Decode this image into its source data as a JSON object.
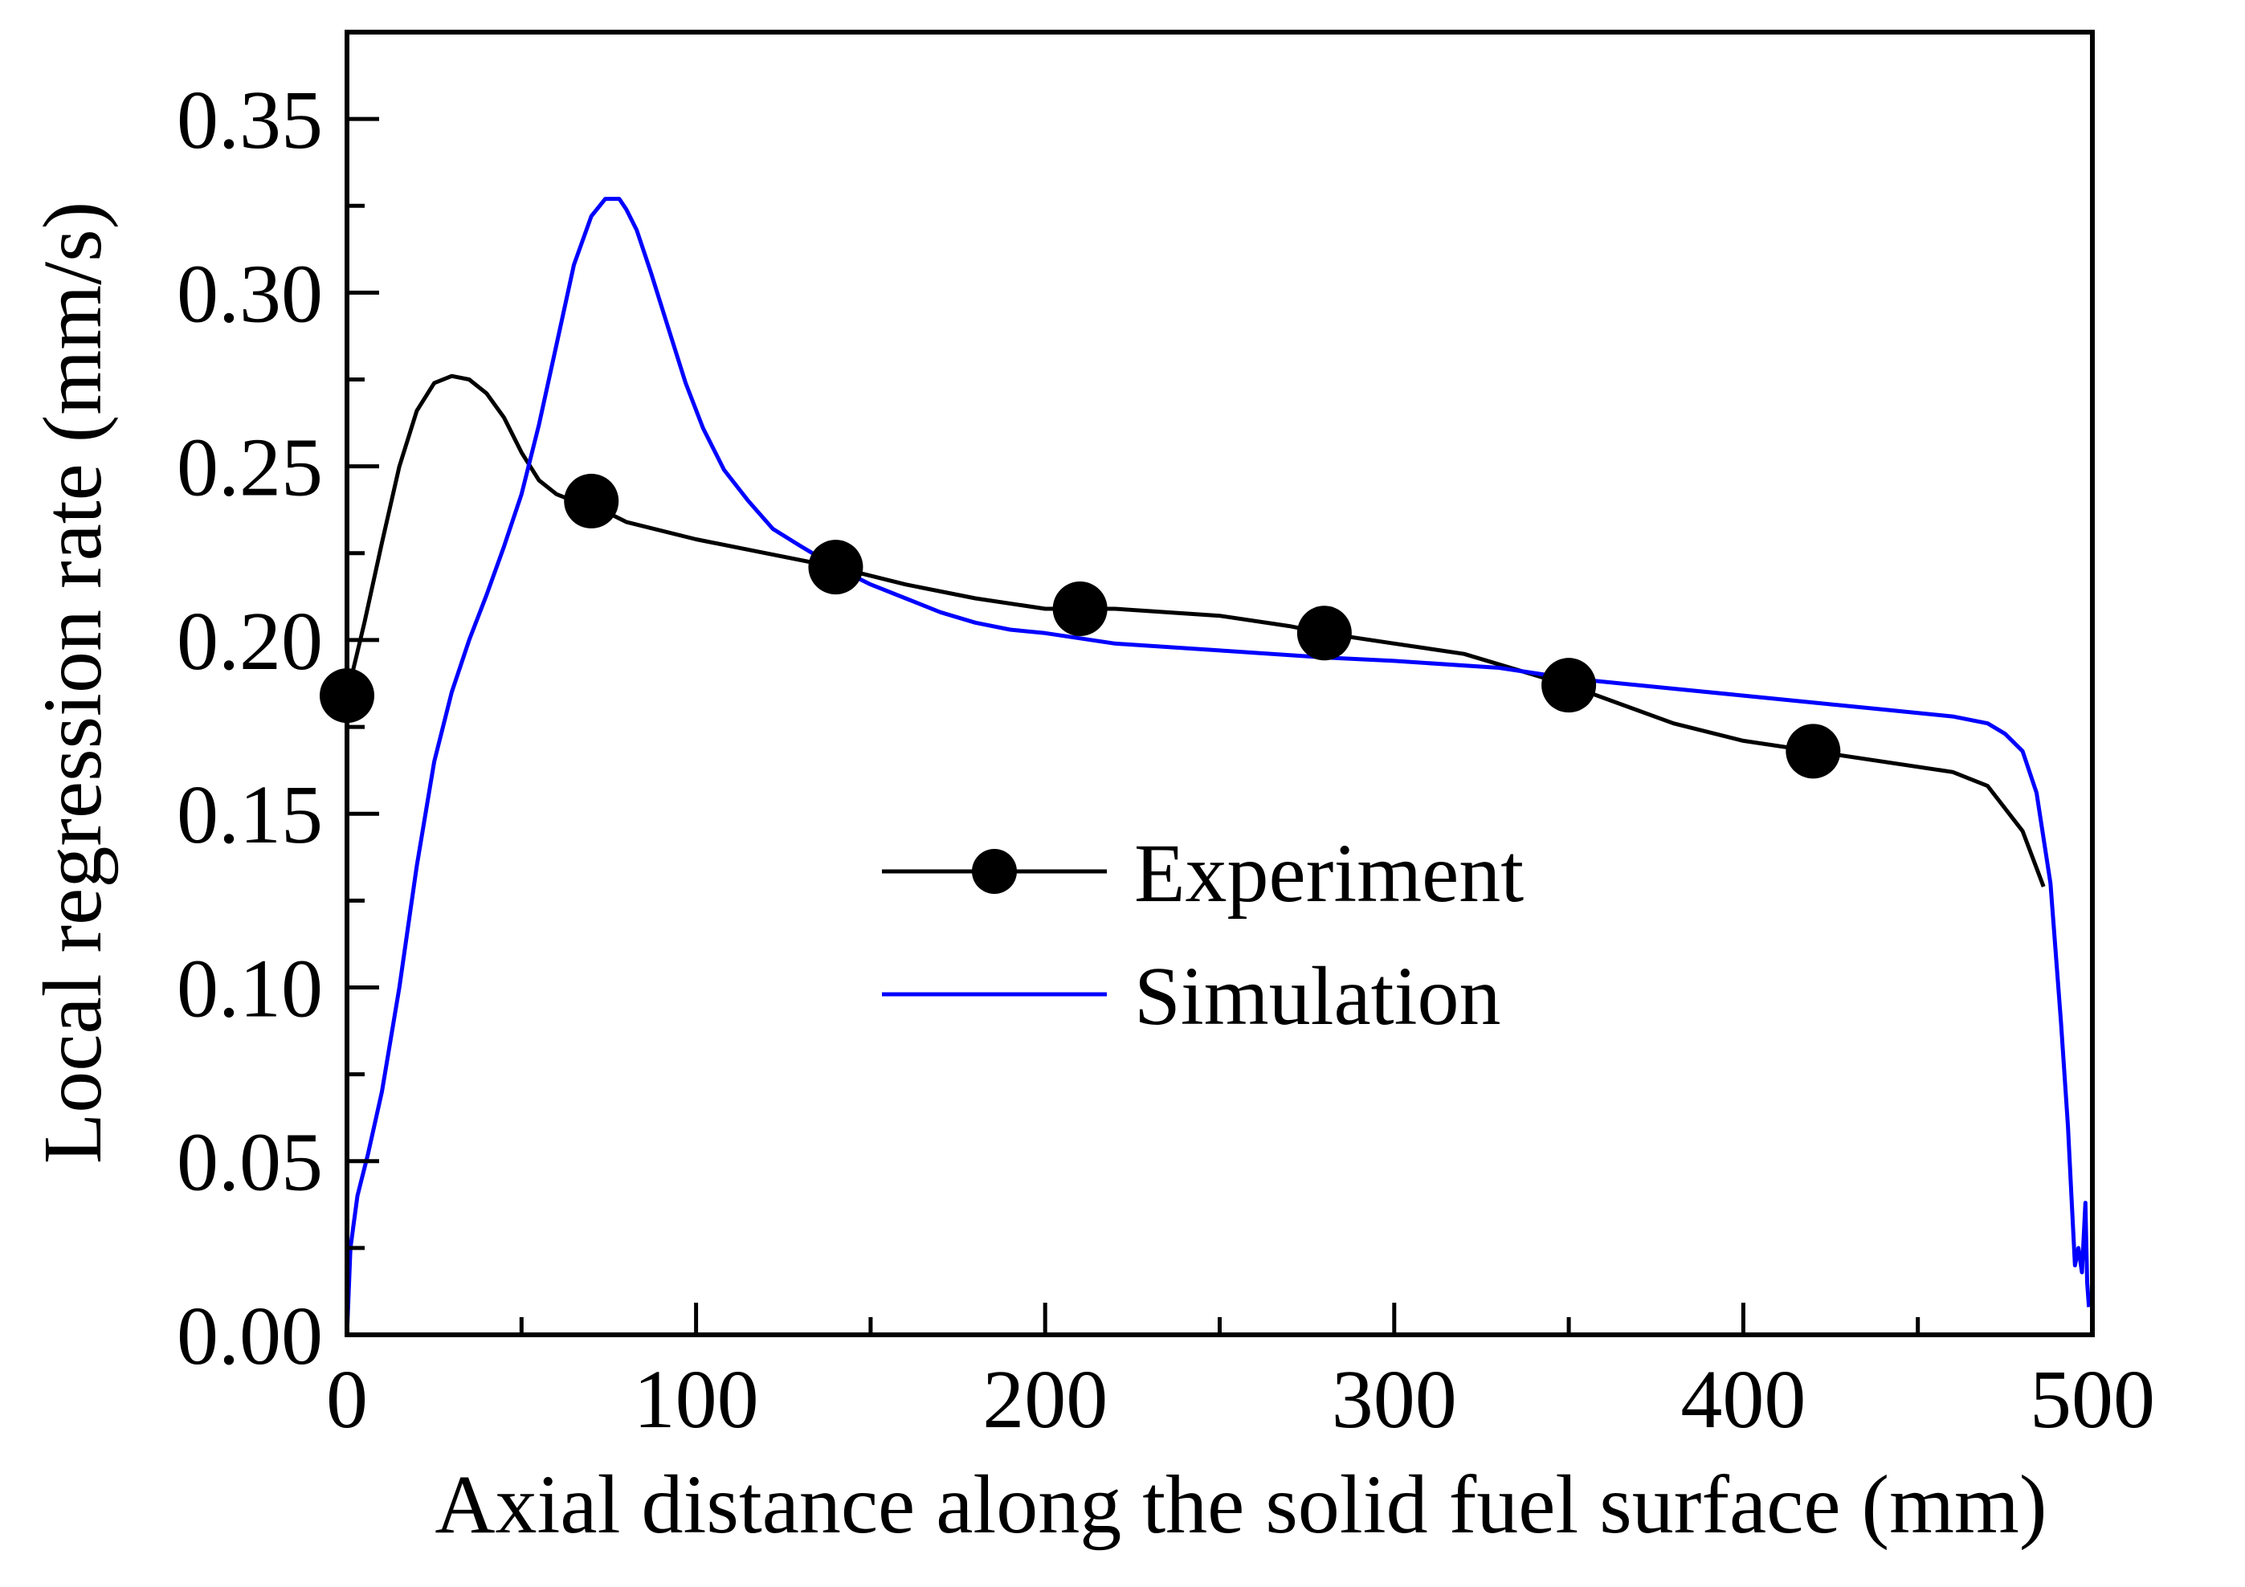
{
  "chart_data": {
    "type": "line",
    "title": "",
    "xlabel": "Axial distance along the solid fuel surface (mm)",
    "ylabel": "Local regression rate (mm/s)",
    "xlim": [
      0,
      500
    ],
    "ylim": [
      0,
      0.375
    ],
    "xticks": [
      "0",
      "100",
      "200",
      "300",
      "400",
      "500"
    ],
    "xtick_values": [
      0,
      100,
      200,
      300,
      400,
      500
    ],
    "yticks": [
      "0.00",
      "0.05",
      "0.10",
      "0.15",
      "0.20",
      "0.25",
      "0.30",
      "0.35"
    ],
    "ytick_values": [
      0,
      0.05,
      0.1,
      0.15,
      0.2,
      0.25,
      0.3,
      0.35
    ],
    "grid": false,
    "legend_position": "center-right",
    "series": [
      {
        "name": "Experiment",
        "color": "#000000",
        "line": {
          "x": [
            0,
            5,
            10,
            15,
            20,
            25,
            30,
            35,
            40,
            45,
            50,
            55,
            60,
            65,
            70,
            80,
            100,
            120,
            140,
            160,
            180,
            200,
            220,
            250,
            270,
            280,
            300,
            320,
            340,
            350,
            380,
            400,
            420,
            440,
            460,
            470,
            480,
            486
          ],
          "y": [
            0.184,
            0.205,
            0.228,
            0.25,
            0.266,
            0.274,
            0.276,
            0.275,
            0.271,
            0.264,
            0.254,
            0.246,
            0.242,
            0.24,
            0.239,
            0.234,
            0.229,
            0.225,
            0.221,
            0.216,
            0.212,
            0.209,
            0.209,
            0.207,
            0.204,
            0.202,
            0.199,
            0.196,
            0.19,
            0.187,
            0.176,
            0.171,
            0.168,
            0.165,
            0.162,
            0.158,
            0.145,
            0.129
          ]
        },
        "markers": {
          "x": [
            0,
            70,
            140,
            210,
            280,
            350,
            420
          ],
          "y": [
            0.184,
            0.24,
            0.221,
            0.209,
            0.202,
            0.187,
            0.168
          ]
        }
      },
      {
        "name": "Simulation",
        "color": "#0000ff",
        "line": {
          "x": [
            0,
            1,
            3,
            6,
            10,
            15,
            20,
            25,
            30,
            35,
            40,
            45,
            50,
            55,
            60,
            65,
            70,
            74,
            78,
            80,
            83,
            87,
            92,
            97,
            102,
            108,
            115,
            122,
            130,
            140,
            150,
            160,
            170,
            180,
            190,
            200,
            220,
            250,
            280,
            300,
            330,
            350,
            380,
            400,
            420,
            440,
            460,
            470,
            475,
            480,
            484,
            488,
            491,
            493,
            494,
            495,
            496,
            497,
            498,
            498.5,
            499
          ],
          "y": [
            0.0,
            0.025,
            0.04,
            0.052,
            0.07,
            0.1,
            0.135,
            0.165,
            0.185,
            0.2,
            0.213,
            0.227,
            0.242,
            0.262,
            0.285,
            0.308,
            0.322,
            0.327,
            0.327,
            0.324,
            0.318,
            0.306,
            0.29,
            0.274,
            0.261,
            0.249,
            0.24,
            0.232,
            0.227,
            0.221,
            0.216,
            0.212,
            0.208,
            0.205,
            0.203,
            0.202,
            0.199,
            0.197,
            0.195,
            0.194,
            0.192,
            0.189,
            0.186,
            0.184,
            0.182,
            0.18,
            0.178,
            0.176,
            0.173,
            0.168,
            0.156,
            0.13,
            0.09,
            0.06,
            0.04,
            0.02,
            0.025,
            0.018,
            0.038,
            0.015,
            0.008
          ]
        }
      }
    ]
  }
}
